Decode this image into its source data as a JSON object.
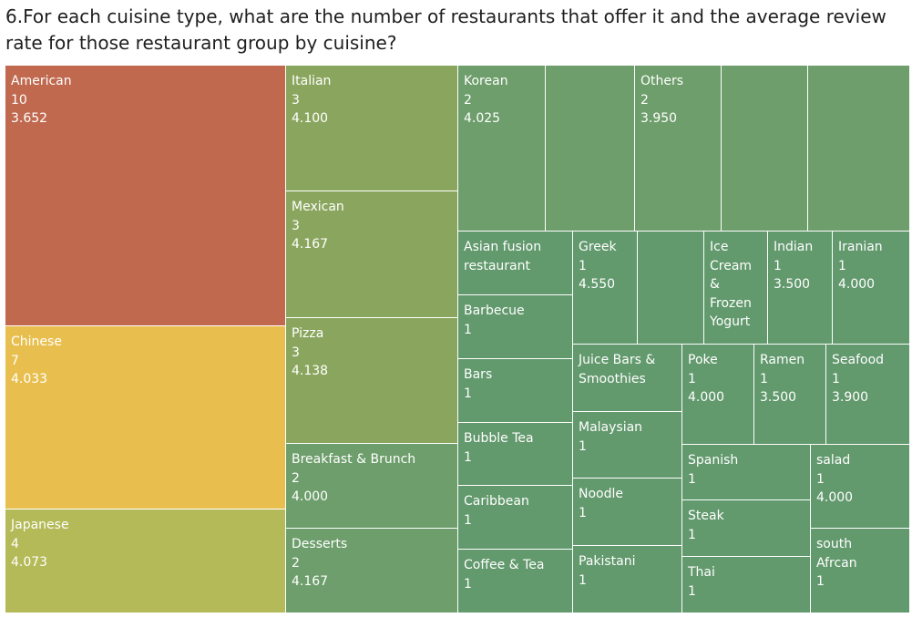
{
  "question": "6.For each cuisine type, what are the number of restaurants that offer it and the average review rate for those restaurant group by cuisine?",
  "chart_data": {
    "type": "treemap",
    "size_measure": "number of restaurants",
    "color_measure": "average review rate",
    "items": [
      {
        "cuisine": "American",
        "count": 10,
        "avg_rating": "3.652",
        "color": "#c0694f",
        "label_lines": [
          "American",
          "10",
          "3.652"
        ]
      },
      {
        "cuisine": "Chinese",
        "count": 7,
        "avg_rating": "4.033",
        "color": "#e8bf4e",
        "label_lines": [
          "Chinese",
          "7",
          "4.033"
        ]
      },
      {
        "cuisine": "Japanese",
        "count": 4,
        "avg_rating": "4.073",
        "color": "#b3ba57",
        "label_lines": [
          "Japanese",
          "4",
          "4.073"
        ]
      },
      {
        "cuisine": "Italian",
        "count": 3,
        "avg_rating": "4.100",
        "color": "#8aa65e",
        "label_lines": [
          "Italian",
          "3",
          "4.100"
        ]
      },
      {
        "cuisine": "Mexican",
        "count": 3,
        "avg_rating": "4.167",
        "color": "#8aa65e",
        "label_lines": [
          "Mexican",
          "3",
          "4.167"
        ]
      },
      {
        "cuisine": "Pizza",
        "count": 3,
        "avg_rating": "4.138",
        "color": "#8aa65e",
        "label_lines": [
          "Pizza",
          "3",
          "4.138"
        ]
      },
      {
        "cuisine": "Breakfast & Brunch",
        "count": 2,
        "avg_rating": "4.000",
        "color": "#6d9e6b",
        "label_lines": [
          "Breakfast & Brunch",
          "2",
          "4.000"
        ]
      },
      {
        "cuisine": "Desserts",
        "count": 2,
        "avg_rating": "4.167",
        "color": "#6d9e6b",
        "label_lines": [
          "Desserts",
          "2",
          "4.167"
        ]
      },
      {
        "cuisine": "Korean",
        "count": 2,
        "avg_rating": "4.025",
        "color": "#6d9e6b",
        "label_lines": [
          "Korean",
          "2",
          "4.025"
        ]
      },
      {
        "cuisine": "Others",
        "count": 2,
        "avg_rating": "3.950",
        "color": "#6d9e6b",
        "label_lines": [
          "Others",
          "2",
          "3.950"
        ]
      },
      {
        "cuisine": "Asian fusion restaurant",
        "count": null,
        "avg_rating": null,
        "color": "#62996d",
        "label_lines": [
          "Asian fusion",
          "restaurant"
        ]
      },
      {
        "cuisine": "Barbecue",
        "count": 1,
        "avg_rating": null,
        "color": "#62996d",
        "label_lines": [
          "Barbecue",
          "1"
        ]
      },
      {
        "cuisine": "Bars",
        "count": 1,
        "avg_rating": null,
        "color": "#62996d",
        "label_lines": [
          "Bars",
          "1"
        ]
      },
      {
        "cuisine": "Bubble Tea",
        "count": 1,
        "avg_rating": null,
        "color": "#62996d",
        "label_lines": [
          "Bubble Tea",
          "1"
        ]
      },
      {
        "cuisine": "Caribbean",
        "count": 1,
        "avg_rating": null,
        "color": "#62996d",
        "label_lines": [
          "Caribbean",
          "1"
        ]
      },
      {
        "cuisine": "Coffee & Tea",
        "count": 1,
        "avg_rating": null,
        "color": "#62996d",
        "label_lines": [
          "Coffee & Tea",
          "1"
        ]
      },
      {
        "cuisine": "Greek",
        "count": 1,
        "avg_rating": "4.550",
        "color": "#62996d",
        "label_lines": [
          "Greek",
          "1",
          "4.550"
        ]
      },
      {
        "cuisine": "Ice Cream & Frozen Yogurt",
        "count": null,
        "avg_rating": null,
        "color": "#62996d",
        "label_lines": [
          "Ice",
          "Cream",
          "&",
          "Frozen",
          "Yogurt"
        ]
      },
      {
        "cuisine": "Indian",
        "count": 1,
        "avg_rating": "3.500",
        "color": "#62996d",
        "label_lines": [
          "Indian",
          "1",
          "3.500"
        ]
      },
      {
        "cuisine": "Iranian",
        "count": 1,
        "avg_rating": "4.000",
        "color": "#62996d",
        "label_lines": [
          "Iranian",
          "1",
          "4.000"
        ]
      },
      {
        "cuisine": "Juice Bars & Smoothies",
        "count": null,
        "avg_rating": null,
        "color": "#62996d",
        "label_lines": [
          "Juice Bars &",
          "Smoothies"
        ]
      },
      {
        "cuisine": "Malaysian",
        "count": 1,
        "avg_rating": null,
        "color": "#62996d",
        "label_lines": [
          "Malaysian",
          "1"
        ]
      },
      {
        "cuisine": "Noodle",
        "count": 1,
        "avg_rating": null,
        "color": "#62996d",
        "label_lines": [
          "Noodle",
          "1"
        ]
      },
      {
        "cuisine": "Pakistani",
        "count": 1,
        "avg_rating": null,
        "color": "#62996d",
        "label_lines": [
          "Pakistani",
          "1"
        ]
      },
      {
        "cuisine": "Poke",
        "count": 1,
        "avg_rating": "4.000",
        "color": "#62996d",
        "label_lines": [
          "Poke",
          "1",
          "4.000"
        ]
      },
      {
        "cuisine": "Ramen",
        "count": 1,
        "avg_rating": "3.500",
        "color": "#62996d",
        "label_lines": [
          "Ramen",
          "1",
          "3.500"
        ]
      },
      {
        "cuisine": "Seafood",
        "count": 1,
        "avg_rating": "3.900",
        "color": "#62996d",
        "label_lines": [
          "Seafood",
          "1",
          "3.900"
        ]
      },
      {
        "cuisine": "Spanish",
        "count": 1,
        "avg_rating": null,
        "color": "#62996d",
        "label_lines": [
          "Spanish",
          "1"
        ]
      },
      {
        "cuisine": "Steak",
        "count": 1,
        "avg_rating": null,
        "color": "#62996d",
        "label_lines": [
          "Steak",
          "1"
        ]
      },
      {
        "cuisine": "Thai",
        "count": 1,
        "avg_rating": null,
        "color": "#62996d",
        "label_lines": [
          "Thai",
          "1"
        ]
      },
      {
        "cuisine": "salad",
        "count": 1,
        "avg_rating": "4.000",
        "color": "#62996d",
        "label_lines": [
          "salad",
          "1",
          "4.000"
        ]
      },
      {
        "cuisine": "south Afrcan",
        "count": 1,
        "avg_rating": null,
        "color": "#62996d",
        "label_lines": [
          "south",
          "Afrcan",
          "1"
        ]
      },
      {
        "cuisine": "",
        "count": null,
        "avg_rating": null,
        "color": "#6d9e6b",
        "label_lines": []
      },
      {
        "cuisine": "",
        "count": null,
        "avg_rating": null,
        "color": "#6d9e6b",
        "label_lines": []
      },
      {
        "cuisine": "",
        "count": null,
        "avg_rating": null,
        "color": "#6d9e6b",
        "label_lines": []
      },
      {
        "cuisine": "",
        "count": null,
        "avg_rating": null,
        "color": "#6d9e6b",
        "label_lines": []
      },
      {
        "cuisine": "",
        "count": null,
        "avg_rating": null,
        "color": "#62996d",
        "label_lines": []
      },
      {
        "cuisine": "",
        "count": null,
        "avg_rating": null,
        "color": "#62996d",
        "label_lines": []
      }
    ]
  }
}
